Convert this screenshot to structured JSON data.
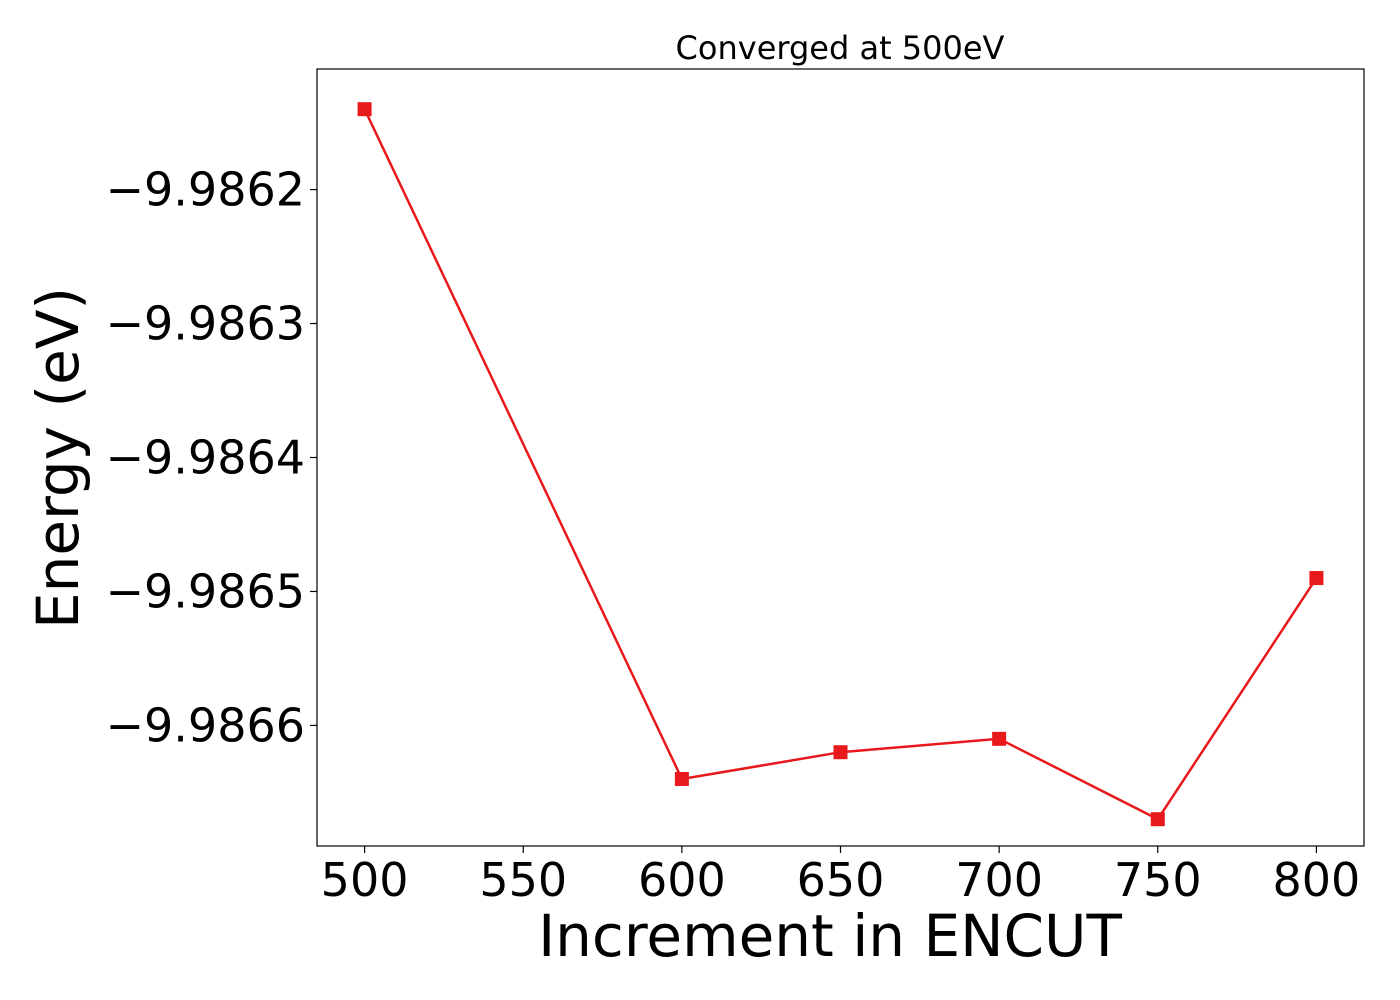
{
  "chart_data": {
    "type": "line",
    "title": "Converged at 500eV",
    "xlabel": "Increment in ENCUT",
    "ylabel": "Energy (eV)",
    "x": [
      500,
      600,
      650,
      700,
      750,
      800
    ],
    "series": [
      {
        "values": [
          -9.98614,
          -9.98664,
          -9.98662,
          -9.98661,
          -9.98667,
          -9.98649
        ],
        "color": "#e8191c",
        "marker": "square"
      }
    ],
    "xlim": [
      485,
      815
    ],
    "ylim": [
      -9.98669,
      -9.98611
    ],
    "xticks": [
      500,
      550,
      600,
      650,
      700,
      750,
      800
    ],
    "xtick_labels": [
      "500",
      "550",
      "600",
      "650",
      "700",
      "750",
      "800"
    ],
    "yticks": [
      -9.9862,
      -9.9863,
      -9.9864,
      -9.9865,
      -9.9866
    ],
    "ytick_labels": [
      "−9.9862",
      "−9.9863",
      "−9.9864",
      "−9.9865",
      "−9.9866"
    ],
    "grid": false,
    "legend": false
  }
}
